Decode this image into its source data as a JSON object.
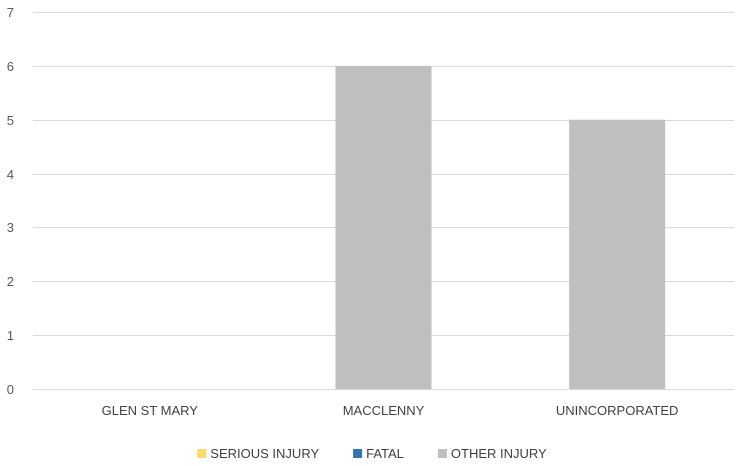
{
  "chart_data": {
    "type": "bar",
    "categories": [
      "GLEN ST MARY",
      "MACCLENNY",
      "UNINCORPORATED"
    ],
    "series": [
      {
        "name": "SERIOUS INJURY",
        "color": "#FFD965",
        "values": [
          0,
          0,
          0
        ]
      },
      {
        "name": "FATAL",
        "color": "#2E75B6",
        "values": [
          0,
          0,
          0
        ]
      },
      {
        "name": "OTHER INJURY",
        "color": "#BFBFBF",
        "values": [
          0,
          6,
          5
        ]
      }
    ],
    "ylim": [
      0,
      7
    ],
    "yticks": [
      "0",
      "1",
      "2",
      "3",
      "4",
      "5",
      "6",
      "7"
    ],
    "grid": true,
    "legend_position": "bottom",
    "title": "",
    "xlabel": "",
    "ylabel": ""
  }
}
